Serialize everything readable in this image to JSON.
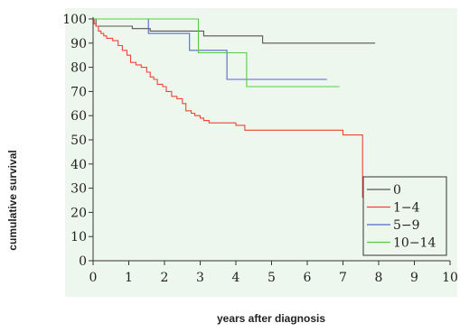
{
  "chart_data": {
    "type": "line",
    "xlabel": "years after diagnosis",
    "ylabel": "cumulative survival",
    "xlim": [
      0,
      10
    ],
    "ylim": [
      0,
      100
    ],
    "xticks": [
      0,
      1,
      2,
      3,
      4,
      5,
      6,
      7,
      8,
      9,
      10
    ],
    "yticks": [
      0,
      10,
      20,
      30,
      40,
      50,
      60,
      70,
      80,
      90,
      100
    ],
    "grid": false,
    "legend_position": "bottom-right",
    "background_color": "#eef7ee",
    "series": [
      {
        "name": "0",
        "color": "#555555",
        "x": [
          0,
          0.08,
          1.1,
          1.6,
          3.1,
          4.75,
          7.9
        ],
        "y": [
          100,
          97,
          96,
          95,
          93,
          90,
          90
        ]
      },
      {
        "name": "1−4",
        "color": "#ee4433",
        "x": [
          0,
          0.03,
          0.08,
          0.15,
          0.22,
          0.3,
          0.38,
          0.55,
          0.7,
          0.82,
          0.95,
          1.05,
          1.2,
          1.35,
          1.5,
          1.6,
          1.7,
          1.8,
          1.95,
          2.05,
          2.2,
          2.35,
          2.5,
          2.6,
          2.75,
          2.85,
          3.0,
          3.1,
          3.25,
          4.0,
          4.25,
          7.0,
          7.55
        ],
        "y": [
          100,
          98,
          97,
          95,
          94,
          93,
          92,
          91,
          89,
          87,
          85,
          82,
          81,
          80,
          78,
          76,
          75,
          73,
          72,
          70,
          68,
          67,
          65,
          62,
          61,
          60,
          59,
          58,
          57,
          56,
          54,
          52,
          26
        ]
      },
      {
        "name": "5−9",
        "color": "#5566cc",
        "x": [
          0,
          1.55,
          2.7,
          3.75,
          6.55
        ],
        "y": [
          100,
          94,
          87,
          75,
          75
        ]
      },
      {
        "name": "10−14",
        "color": "#55cc44",
        "x": [
          0,
          2.95,
          4.3,
          6.9
        ],
        "y": [
          100,
          86,
          72,
          72
        ]
      }
    ]
  }
}
